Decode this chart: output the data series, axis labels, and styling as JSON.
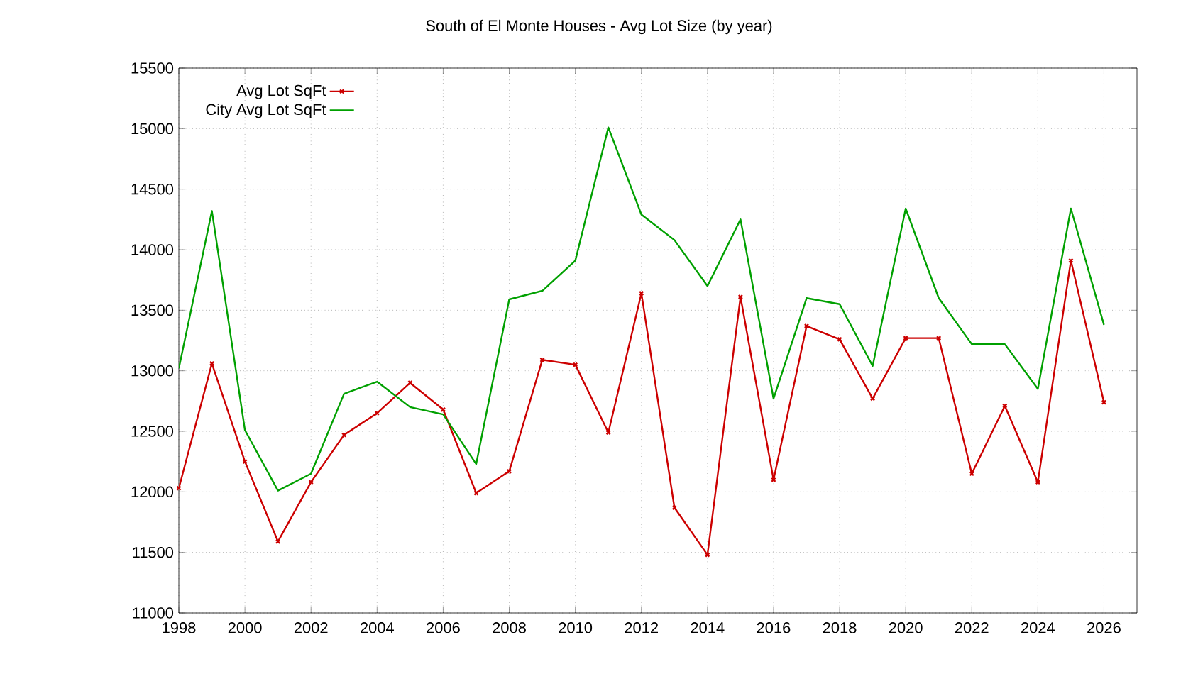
{
  "chart_data": {
    "type": "line",
    "title": "South of El Monte Houses - Avg Lot Size (by year)",
    "x": [
      1998,
      1999,
      2000,
      2001,
      2002,
      2003,
      2004,
      2005,
      2006,
      2007,
      2008,
      2009,
      2010,
      2011,
      2012,
      2013,
      2014,
      2015,
      2016,
      2017,
      2018,
      2019,
      2020,
      2021,
      2022,
      2023,
      2024,
      2025,
      2026
    ],
    "series": [
      {
        "name": "Avg Lot SqFt",
        "color": "#cc0000",
        "marker": "cross",
        "values": [
          12030,
          13060,
          12250,
          11590,
          12080,
          12470,
          12650,
          12900,
          12680,
          11990,
          12170,
          13090,
          13050,
          12490,
          13640,
          11870,
          11480,
          13610,
          12100,
          13370,
          13260,
          12770,
          13270,
          13270,
          12150,
          12710,
          12080,
          13910,
          12740
        ]
      },
      {
        "name": "City Avg Lot SqFt",
        "color": "#00a000",
        "marker": "none",
        "values": [
          13020,
          14320,
          12510,
          12010,
          12150,
          12810,
          12910,
          12700,
          12640,
          12230,
          13590,
          13660,
          13910,
          15010,
          14290,
          14080,
          13700,
          14250,
          12770,
          13600,
          13550,
          13040,
          14340,
          13600,
          13220,
          13220,
          12850,
          14340,
          13380
        ]
      }
    ],
    "xlim": [
      1998,
      2027
    ],
    "ylim": [
      11000,
      15500
    ],
    "xticks": [
      1998,
      2000,
      2002,
      2004,
      2006,
      2008,
      2010,
      2012,
      2014,
      2016,
      2018,
      2020,
      2022,
      2024,
      2026
    ],
    "yticks": [
      11000,
      11500,
      12000,
      12500,
      13000,
      13500,
      14000,
      14500,
      15000,
      15500
    ],
    "grid": true,
    "legend": "top left",
    "line_style": "solid"
  }
}
